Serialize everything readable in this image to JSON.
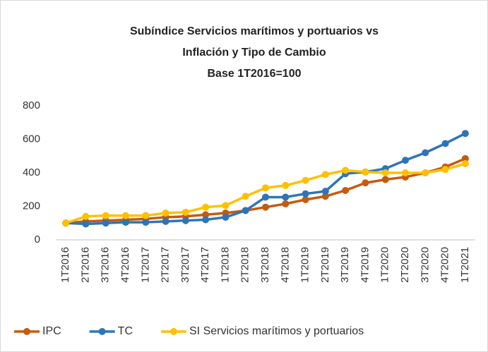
{
  "chart_data": {
    "type": "line",
    "title": [
      "Subíndice Servicios marítimos y portuarios vs",
      "Inflación y Tipo de Cambio"
    ],
    "subtitle": "Base 1T2016=100",
    "categories": [
      "1T2016",
      "2T2016",
      "3T2016",
      "4T2016",
      "1T2017",
      "2T2017",
      "3T2017",
      "4T2017",
      "1T2018",
      "2T2018",
      "3T2018",
      "4T2018",
      "1T2019",
      "2T2019",
      "3T2019",
      "4T2019",
      "1T2020",
      "2T2020",
      "3T2020",
      "4T2020",
      "1T2021"
    ],
    "series": [
      {
        "name": "IPC",
        "color": "#c55a11",
        "values": [
          100,
          110,
          115,
          120,
          125,
          135,
          140,
          150,
          160,
          175,
          195,
          215,
          240,
          260,
          295,
          340,
          360,
          375,
          400,
          435,
          485
        ]
      },
      {
        "name": "TC",
        "color": "#2e75b6",
        "values": [
          100,
          95,
          100,
          105,
          105,
          110,
          115,
          120,
          135,
          175,
          255,
          255,
          275,
          290,
          395,
          405,
          425,
          475,
          520,
          575,
          635
        ]
      },
      {
        "name": "SI Servicios marítimos y portuarios",
        "color": "#ffc000",
        "values": [
          100,
          140,
          145,
          145,
          145,
          160,
          165,
          195,
          205,
          260,
          310,
          325,
          355,
          390,
          415,
          405,
          400,
          400,
          400,
          420,
          455
        ]
      }
    ],
    "ylim": [
      0,
      800
    ],
    "yticks": [
      0,
      200,
      400,
      600,
      800
    ],
    "grid": false,
    "legend": "bottom"
  }
}
